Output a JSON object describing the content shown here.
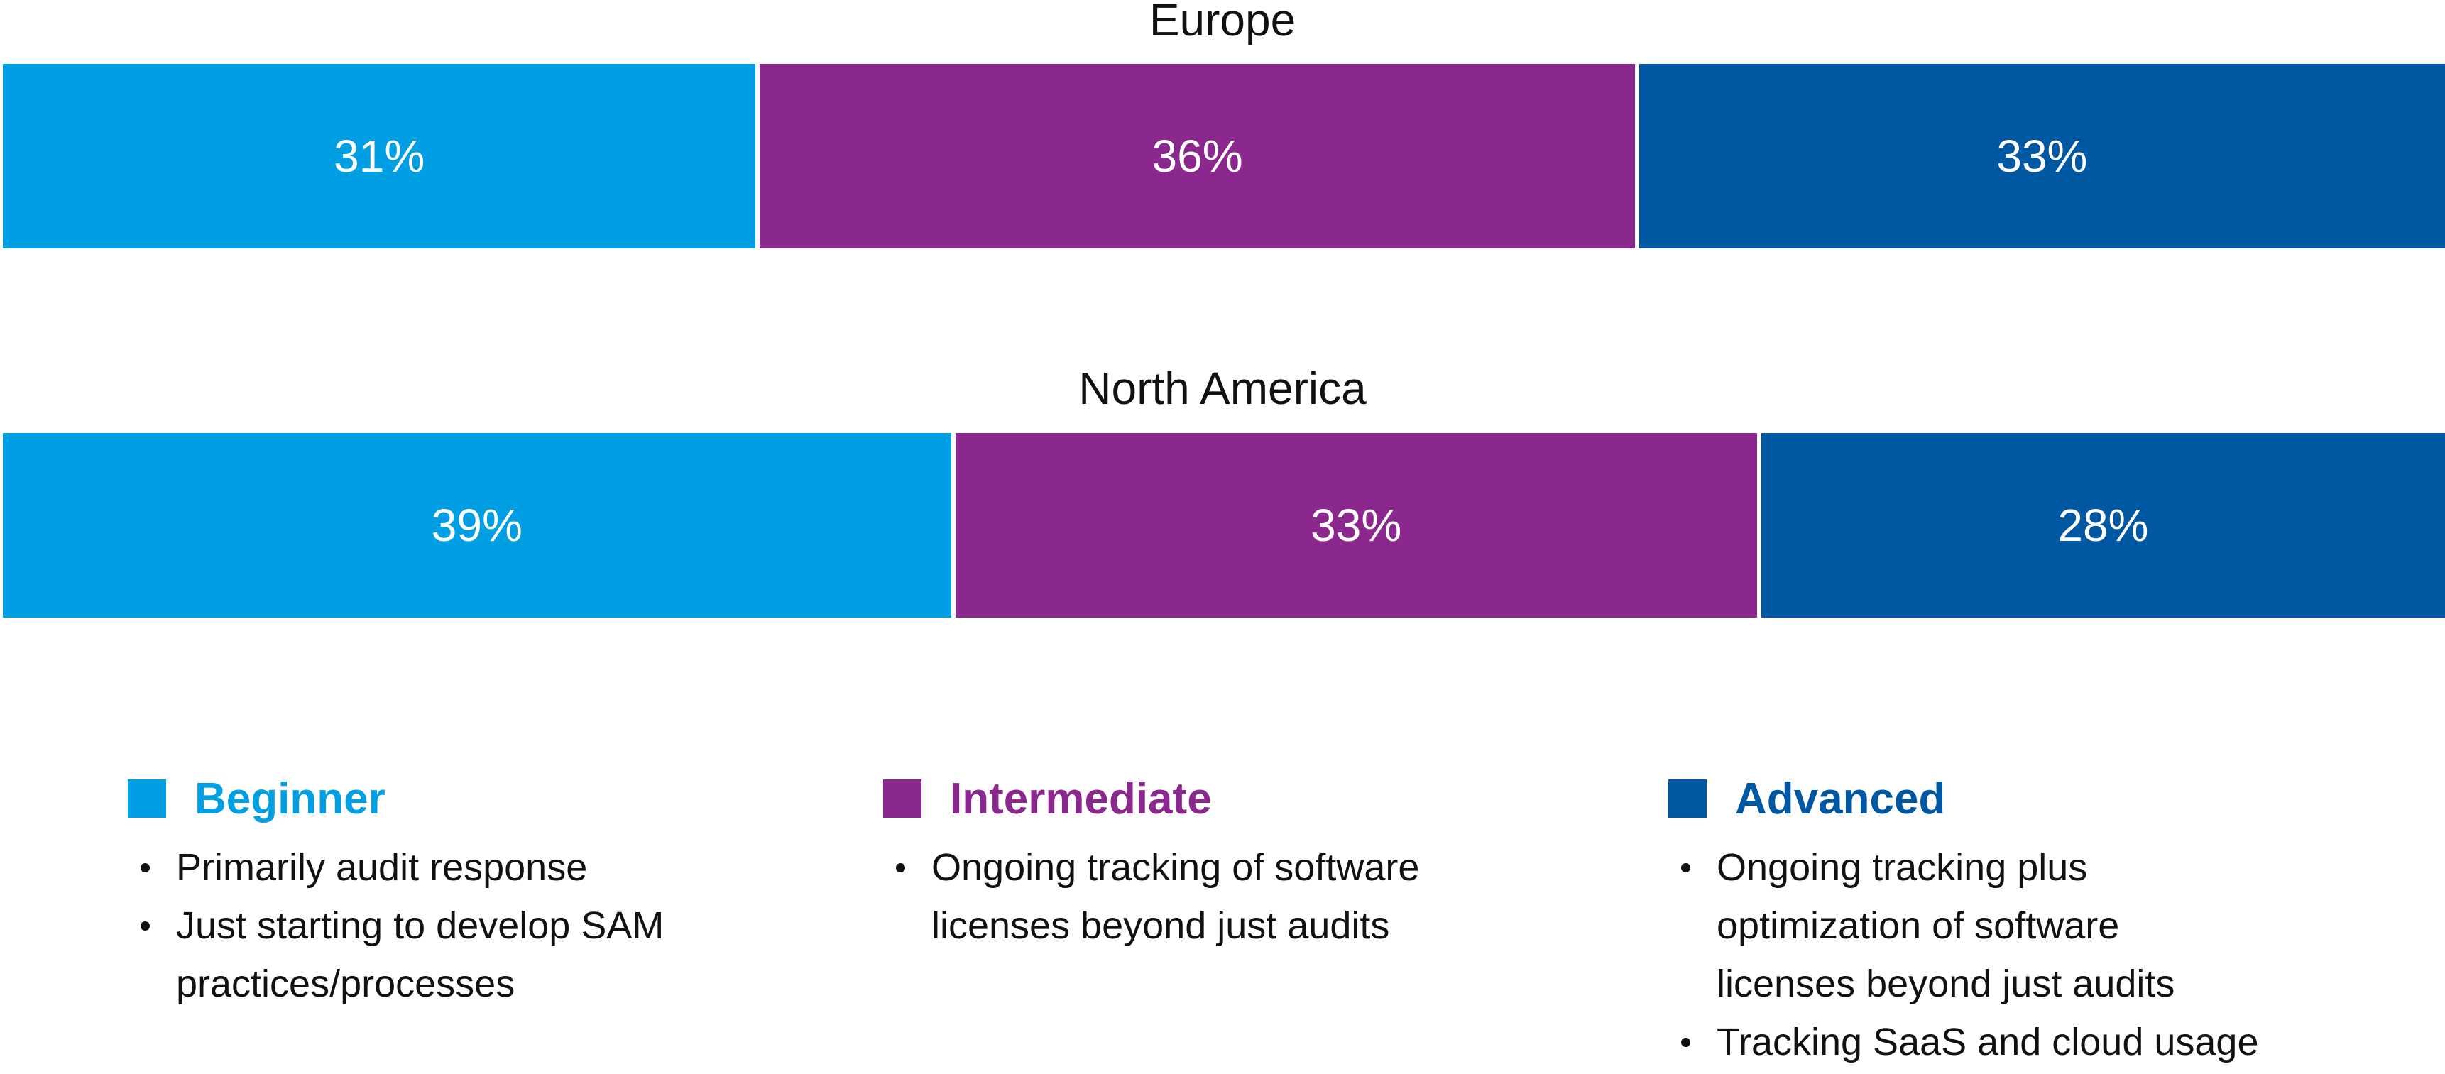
{
  "chart_data": {
    "type": "bar",
    "orientation": "horizontal-stacked-100",
    "categories": [
      "Europe",
      "North America"
    ],
    "series": [
      {
        "name": "Beginner",
        "color": "#009FE3",
        "values": [
          31,
          39
        ],
        "labels": [
          "31%",
          "39%"
        ]
      },
      {
        "name": "Intermediate",
        "color": "#8B288E",
        "values": [
          36,
          33
        ],
        "labels": [
          "36%",
          "33%"
        ]
      },
      {
        "name": "Advanced",
        "color": "#0057A2",
        "values": [
          33,
          28
        ],
        "labels": [
          "33%",
          "28%"
        ]
      }
    ],
    "title": "",
    "xlabel": "",
    "ylabel": "",
    "xlim": [
      0,
      100
    ]
  },
  "legend": [
    {
      "label": "Beginner",
      "color": "#009FE3",
      "bullets": [
        "Primarily audit response",
        "Just starting to develop SAM practices/processes"
      ]
    },
    {
      "label": "Intermediate",
      "color": "#8B288E",
      "bullets": [
        "Ongoing tracking of software licenses beyond just audits"
      ]
    },
    {
      "label": "Advanced",
      "color": "#0057A2",
      "bullets": [
        "Ongoing tracking plus optimization of software licenses beyond just audits",
        "Tracking SaaS and cloud usage"
      ]
    }
  ]
}
